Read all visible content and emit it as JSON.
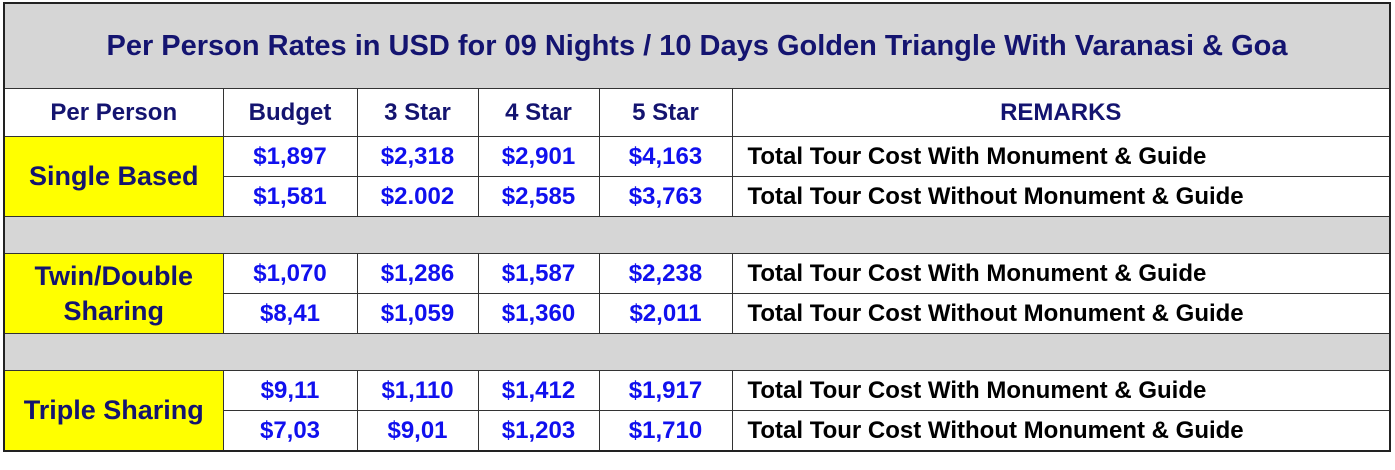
{
  "title": "Per Person Rates in USD for 09 Nights / 10 Days Golden Triangle With Varanasi & Goa",
  "headers": {
    "per_person": "Per Person",
    "budget": "Budget",
    "star3": "3 Star",
    "star4": "4 Star",
    "star5": "5 Star",
    "remarks": "REMARKS"
  },
  "groups": [
    {
      "label": "Single Based",
      "rows": [
        {
          "budget": "$1,897",
          "star3": "$2,318",
          "star4": "$2,901",
          "star5": "$4,163",
          "remark": "Total Tour Cost With Monument & Guide"
        },
        {
          "budget": "$1,581",
          "star3": "$2.002",
          "star4": "$2,585",
          "star5": "$3,763",
          "remark": "Total Tour Cost Without Monument & Guide"
        }
      ]
    },
    {
      "label": "Twin/Double Sharing",
      "rows": [
        {
          "budget": "$1,070",
          "star3": "$1,286",
          "star4": "$1,587",
          "star5": "$2,238",
          "remark": "Total Tour Cost With Monument & Guide"
        },
        {
          "budget": "$8,41",
          "star3": "$1,059",
          "star4": "$1,360",
          "star5": "$2,011",
          "remark": "Total Tour Cost Without Monument & Guide"
        }
      ]
    },
    {
      "label": "Triple Sharing",
      "rows": [
        {
          "budget": "$9,11",
          "star3": "$1,110",
          "star4": "$1,412",
          "star5": "$1,917",
          "remark": "Total Tour Cost With Monument & Guide"
        },
        {
          "budget": "$7,03",
          "star3": "$9,01",
          "star4": "$1,203",
          "star5": "$1,710",
          "remark": "Total Tour Cost Without Monument & Guide"
        }
      ]
    }
  ],
  "colors": {
    "title_bg": "#d6d6d6",
    "title_text": "#141470",
    "label_bg": "#ffff00",
    "price_text": "#1010ee",
    "remark_text": "#000000"
  }
}
